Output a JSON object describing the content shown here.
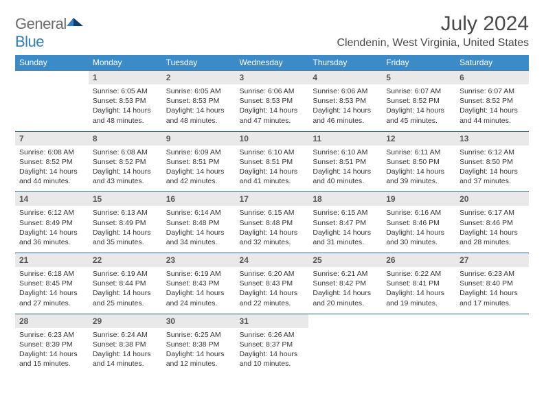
{
  "logo": {
    "word1": "General",
    "word2": "Blue"
  },
  "title": "July 2024",
  "subtitle": "Clendenin, West Virginia, United States",
  "colors": {
    "header_bg": "#3b8bc8",
    "header_text": "#ffffff",
    "daynum_bg": "#e9e9e9",
    "daynum_text": "#555555",
    "row_border": "#2a5d88",
    "body_text": "#333333",
    "logo_gray": "#6b6b6b",
    "logo_blue": "#2f7ec0"
  },
  "day_headers": [
    "Sunday",
    "Monday",
    "Tuesday",
    "Wednesday",
    "Thursday",
    "Friday",
    "Saturday"
  ],
  "weeks": [
    [
      null,
      {
        "n": "1",
        "sunrise": "Sunrise: 6:05 AM",
        "sunset": "Sunset: 8:53 PM",
        "daylight": "Daylight: 14 hours and 48 minutes."
      },
      {
        "n": "2",
        "sunrise": "Sunrise: 6:05 AM",
        "sunset": "Sunset: 8:53 PM",
        "daylight": "Daylight: 14 hours and 48 minutes."
      },
      {
        "n": "3",
        "sunrise": "Sunrise: 6:06 AM",
        "sunset": "Sunset: 8:53 PM",
        "daylight": "Daylight: 14 hours and 47 minutes."
      },
      {
        "n": "4",
        "sunrise": "Sunrise: 6:06 AM",
        "sunset": "Sunset: 8:53 PM",
        "daylight": "Daylight: 14 hours and 46 minutes."
      },
      {
        "n": "5",
        "sunrise": "Sunrise: 6:07 AM",
        "sunset": "Sunset: 8:52 PM",
        "daylight": "Daylight: 14 hours and 45 minutes."
      },
      {
        "n": "6",
        "sunrise": "Sunrise: 6:07 AM",
        "sunset": "Sunset: 8:52 PM",
        "daylight": "Daylight: 14 hours and 44 minutes."
      }
    ],
    [
      {
        "n": "7",
        "sunrise": "Sunrise: 6:08 AM",
        "sunset": "Sunset: 8:52 PM",
        "daylight": "Daylight: 14 hours and 44 minutes."
      },
      {
        "n": "8",
        "sunrise": "Sunrise: 6:08 AM",
        "sunset": "Sunset: 8:52 PM",
        "daylight": "Daylight: 14 hours and 43 minutes."
      },
      {
        "n": "9",
        "sunrise": "Sunrise: 6:09 AM",
        "sunset": "Sunset: 8:51 PM",
        "daylight": "Daylight: 14 hours and 42 minutes."
      },
      {
        "n": "10",
        "sunrise": "Sunrise: 6:10 AM",
        "sunset": "Sunset: 8:51 PM",
        "daylight": "Daylight: 14 hours and 41 minutes."
      },
      {
        "n": "11",
        "sunrise": "Sunrise: 6:10 AM",
        "sunset": "Sunset: 8:51 PM",
        "daylight": "Daylight: 14 hours and 40 minutes."
      },
      {
        "n": "12",
        "sunrise": "Sunrise: 6:11 AM",
        "sunset": "Sunset: 8:50 PM",
        "daylight": "Daylight: 14 hours and 39 minutes."
      },
      {
        "n": "13",
        "sunrise": "Sunrise: 6:12 AM",
        "sunset": "Sunset: 8:50 PM",
        "daylight": "Daylight: 14 hours and 37 minutes."
      }
    ],
    [
      {
        "n": "14",
        "sunrise": "Sunrise: 6:12 AM",
        "sunset": "Sunset: 8:49 PM",
        "daylight": "Daylight: 14 hours and 36 minutes."
      },
      {
        "n": "15",
        "sunrise": "Sunrise: 6:13 AM",
        "sunset": "Sunset: 8:49 PM",
        "daylight": "Daylight: 14 hours and 35 minutes."
      },
      {
        "n": "16",
        "sunrise": "Sunrise: 6:14 AM",
        "sunset": "Sunset: 8:48 PM",
        "daylight": "Daylight: 14 hours and 34 minutes."
      },
      {
        "n": "17",
        "sunrise": "Sunrise: 6:15 AM",
        "sunset": "Sunset: 8:48 PM",
        "daylight": "Daylight: 14 hours and 32 minutes."
      },
      {
        "n": "18",
        "sunrise": "Sunrise: 6:15 AM",
        "sunset": "Sunset: 8:47 PM",
        "daylight": "Daylight: 14 hours and 31 minutes."
      },
      {
        "n": "19",
        "sunrise": "Sunrise: 6:16 AM",
        "sunset": "Sunset: 8:46 PM",
        "daylight": "Daylight: 14 hours and 30 minutes."
      },
      {
        "n": "20",
        "sunrise": "Sunrise: 6:17 AM",
        "sunset": "Sunset: 8:46 PM",
        "daylight": "Daylight: 14 hours and 28 minutes."
      }
    ],
    [
      {
        "n": "21",
        "sunrise": "Sunrise: 6:18 AM",
        "sunset": "Sunset: 8:45 PM",
        "daylight": "Daylight: 14 hours and 27 minutes."
      },
      {
        "n": "22",
        "sunrise": "Sunrise: 6:19 AM",
        "sunset": "Sunset: 8:44 PM",
        "daylight": "Daylight: 14 hours and 25 minutes."
      },
      {
        "n": "23",
        "sunrise": "Sunrise: 6:19 AM",
        "sunset": "Sunset: 8:43 PM",
        "daylight": "Daylight: 14 hours and 24 minutes."
      },
      {
        "n": "24",
        "sunrise": "Sunrise: 6:20 AM",
        "sunset": "Sunset: 8:43 PM",
        "daylight": "Daylight: 14 hours and 22 minutes."
      },
      {
        "n": "25",
        "sunrise": "Sunrise: 6:21 AM",
        "sunset": "Sunset: 8:42 PM",
        "daylight": "Daylight: 14 hours and 20 minutes."
      },
      {
        "n": "26",
        "sunrise": "Sunrise: 6:22 AM",
        "sunset": "Sunset: 8:41 PM",
        "daylight": "Daylight: 14 hours and 19 minutes."
      },
      {
        "n": "27",
        "sunrise": "Sunrise: 6:23 AM",
        "sunset": "Sunset: 8:40 PM",
        "daylight": "Daylight: 14 hours and 17 minutes."
      }
    ],
    [
      {
        "n": "28",
        "sunrise": "Sunrise: 6:23 AM",
        "sunset": "Sunset: 8:39 PM",
        "daylight": "Daylight: 14 hours and 15 minutes."
      },
      {
        "n": "29",
        "sunrise": "Sunrise: 6:24 AM",
        "sunset": "Sunset: 8:38 PM",
        "daylight": "Daylight: 14 hours and 14 minutes."
      },
      {
        "n": "30",
        "sunrise": "Sunrise: 6:25 AM",
        "sunset": "Sunset: 8:38 PM",
        "daylight": "Daylight: 14 hours and 12 minutes."
      },
      {
        "n": "31",
        "sunrise": "Sunrise: 6:26 AM",
        "sunset": "Sunset: 8:37 PM",
        "daylight": "Daylight: 14 hours and 10 minutes."
      },
      null,
      null,
      null
    ]
  ]
}
